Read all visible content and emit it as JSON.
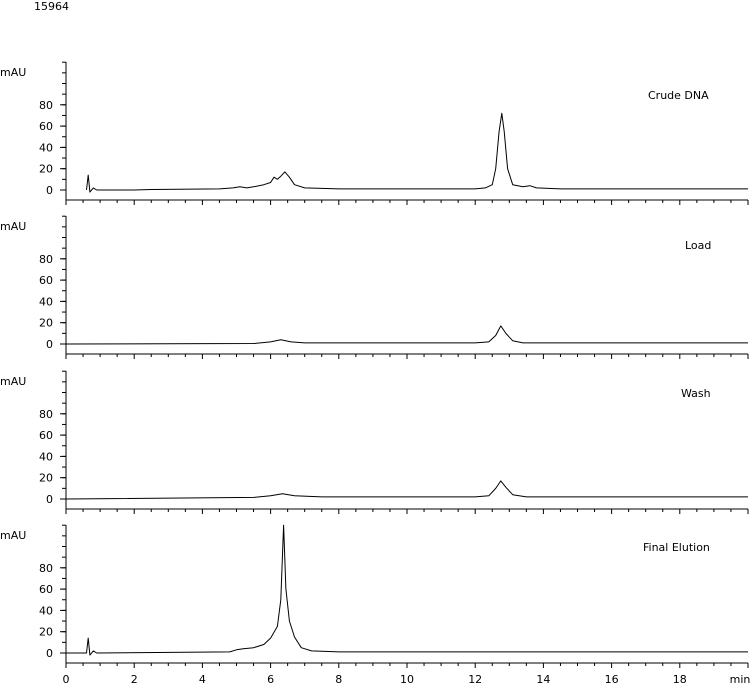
{
  "header": {
    "id_text": "15964"
  },
  "chart_data": {
    "type": "line",
    "xlabel": "min",
    "ylabel": "mAU",
    "xlim": [
      0,
      20
    ],
    "x_ticks": [
      0,
      2,
      4,
      6,
      8,
      10,
      12,
      14,
      16,
      18
    ],
    "ylim": [
      -10,
      120
    ],
    "y_ticks": [
      0,
      20,
      40,
      60,
      80
    ],
    "grid": false,
    "series": [
      {
        "name": "Crude DNA",
        "points": [
          [
            0.6,
            0
          ],
          [
            0.65,
            14
          ],
          [
            0.7,
            -2
          ],
          [
            0.8,
            2
          ],
          [
            0.9,
            0
          ],
          [
            2.0,
            0
          ],
          [
            2.5,
            0.5
          ],
          [
            4.5,
            1
          ],
          [
            4.9,
            2
          ],
          [
            5.1,
            3
          ],
          [
            5.3,
            2
          ],
          [
            5.5,
            3
          ],
          [
            5.8,
            5
          ],
          [
            6.0,
            7
          ],
          [
            6.1,
            12
          ],
          [
            6.2,
            10
          ],
          [
            6.3,
            13
          ],
          [
            6.42,
            17
          ],
          [
            6.55,
            12
          ],
          [
            6.7,
            5
          ],
          [
            7.0,
            2
          ],
          [
            8.0,
            1
          ],
          [
            12.0,
            1
          ],
          [
            12.3,
            2
          ],
          [
            12.5,
            5
          ],
          [
            12.6,
            20
          ],
          [
            12.7,
            55
          ],
          [
            12.78,
            72
          ],
          [
            12.85,
            55
          ],
          [
            12.95,
            20
          ],
          [
            13.1,
            5
          ],
          [
            13.4,
            3
          ],
          [
            13.6,
            4
          ],
          [
            13.8,
            2
          ],
          [
            14.5,
            1
          ],
          [
            20,
            1
          ]
        ]
      },
      {
        "name": "Load",
        "points": [
          [
            0,
            0
          ],
          [
            5.5,
            0.5
          ],
          [
            6.0,
            2
          ],
          [
            6.3,
            4
          ],
          [
            6.6,
            2
          ],
          [
            7.0,
            1
          ],
          [
            12.0,
            1
          ],
          [
            12.4,
            2
          ],
          [
            12.6,
            8
          ],
          [
            12.75,
            17
          ],
          [
            12.9,
            10
          ],
          [
            13.1,
            3
          ],
          [
            13.4,
            1
          ],
          [
            20,
            1
          ]
        ]
      },
      {
        "name": "Wash",
        "points": [
          [
            0,
            0
          ],
          [
            5.5,
            1.5
          ],
          [
            6.0,
            3
          ],
          [
            6.35,
            5
          ],
          [
            6.7,
            3
          ],
          [
            7.5,
            2
          ],
          [
            12.0,
            2
          ],
          [
            12.4,
            3
          ],
          [
            12.6,
            10
          ],
          [
            12.75,
            17
          ],
          [
            12.9,
            11
          ],
          [
            13.1,
            4
          ],
          [
            13.5,
            2
          ],
          [
            20,
            2
          ]
        ]
      },
      {
        "name": "Final Elution",
        "points": [
          [
            0,
            0
          ],
          [
            0.6,
            0
          ],
          [
            0.65,
            14
          ],
          [
            0.7,
            -2
          ],
          [
            0.8,
            2
          ],
          [
            0.9,
            0
          ],
          [
            4.8,
            1
          ],
          [
            5.0,
            3
          ],
          [
            5.2,
            4
          ],
          [
            5.5,
            5
          ],
          [
            5.8,
            8
          ],
          [
            6.0,
            14
          ],
          [
            6.2,
            25
          ],
          [
            6.3,
            50
          ],
          [
            6.38,
            120
          ],
          [
            6.45,
            60
          ],
          [
            6.55,
            30
          ],
          [
            6.7,
            15
          ],
          [
            6.9,
            5
          ],
          [
            7.2,
            2
          ],
          [
            8.0,
            1
          ],
          [
            20,
            1
          ]
        ]
      }
    ]
  }
}
